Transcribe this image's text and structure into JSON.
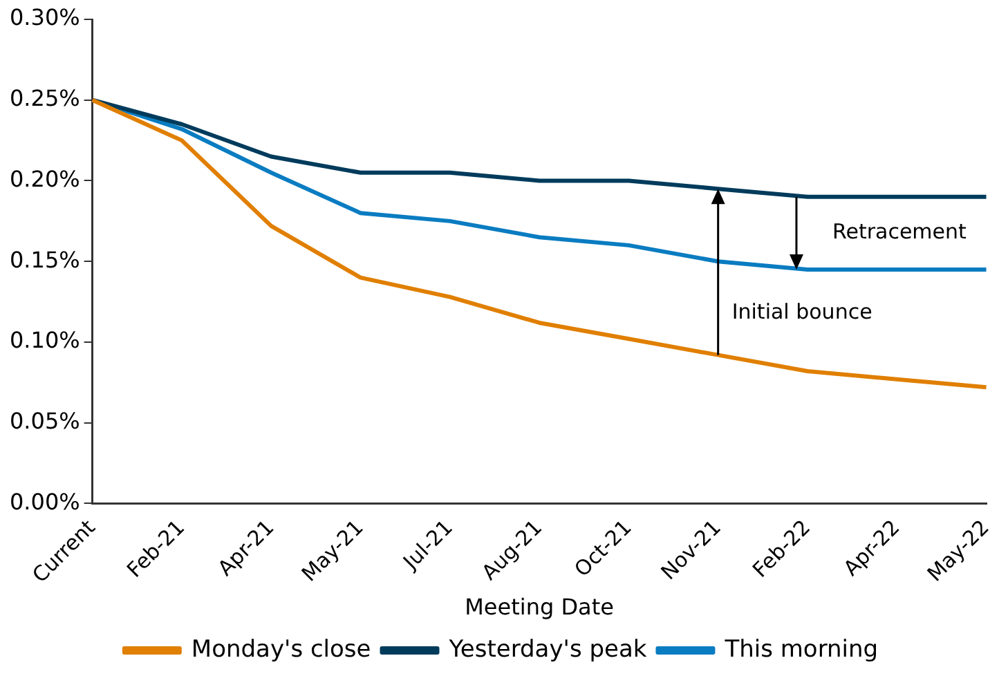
{
  "chart_data": {
    "type": "line",
    "xlabel": "Meeting Date",
    "categories": [
      "Current",
      "Feb-21",
      "Apr-21",
      "May-21",
      "Jul-21",
      "Aug-21",
      "Oct-21",
      "Nov-21",
      "Feb-22",
      "Apr-22",
      "May-22"
    ],
    "series": [
      {
        "name": "Monday's close",
        "color": "#e07f00",
        "values": [
          0.25,
          0.225,
          0.172,
          0.14,
          0.128,
          0.112,
          0.102,
          0.092,
          0.082,
          0.077,
          0.072
        ]
      },
      {
        "name": "Yesterday's peak",
        "color": "#003b5c",
        "values": [
          0.25,
          0.235,
          0.215,
          0.205,
          0.205,
          0.2,
          0.2,
          0.195,
          0.19,
          0.19,
          0.19
        ]
      },
      {
        "name": "This morning",
        "color": "#0a7cc1",
        "values": [
          0.25,
          0.232,
          0.205,
          0.18,
          0.175,
          0.165,
          0.16,
          0.15,
          0.145,
          0.145,
          0.145
        ]
      }
    ],
    "ylim": [
      0,
      0.3
    ],
    "yticks": [
      {
        "value": 0,
        "label": "0.00%"
      },
      {
        "value": 0.05,
        "label": "0.05%"
      },
      {
        "value": 0.1,
        "label": "0.10%"
      },
      {
        "value": 0.15,
        "label": "0.15%"
      },
      {
        "value": 0.2,
        "label": "0.20%"
      },
      {
        "value": 0.25,
        "label": "0.25%"
      },
      {
        "value": 0.3,
        "label": "0.30%"
      }
    ],
    "annotations": [
      "Initial bounce",
      "Retracement"
    ],
    "grid": false,
    "legend": "bottom",
    "marker": "none",
    "line_style": "solid"
  }
}
